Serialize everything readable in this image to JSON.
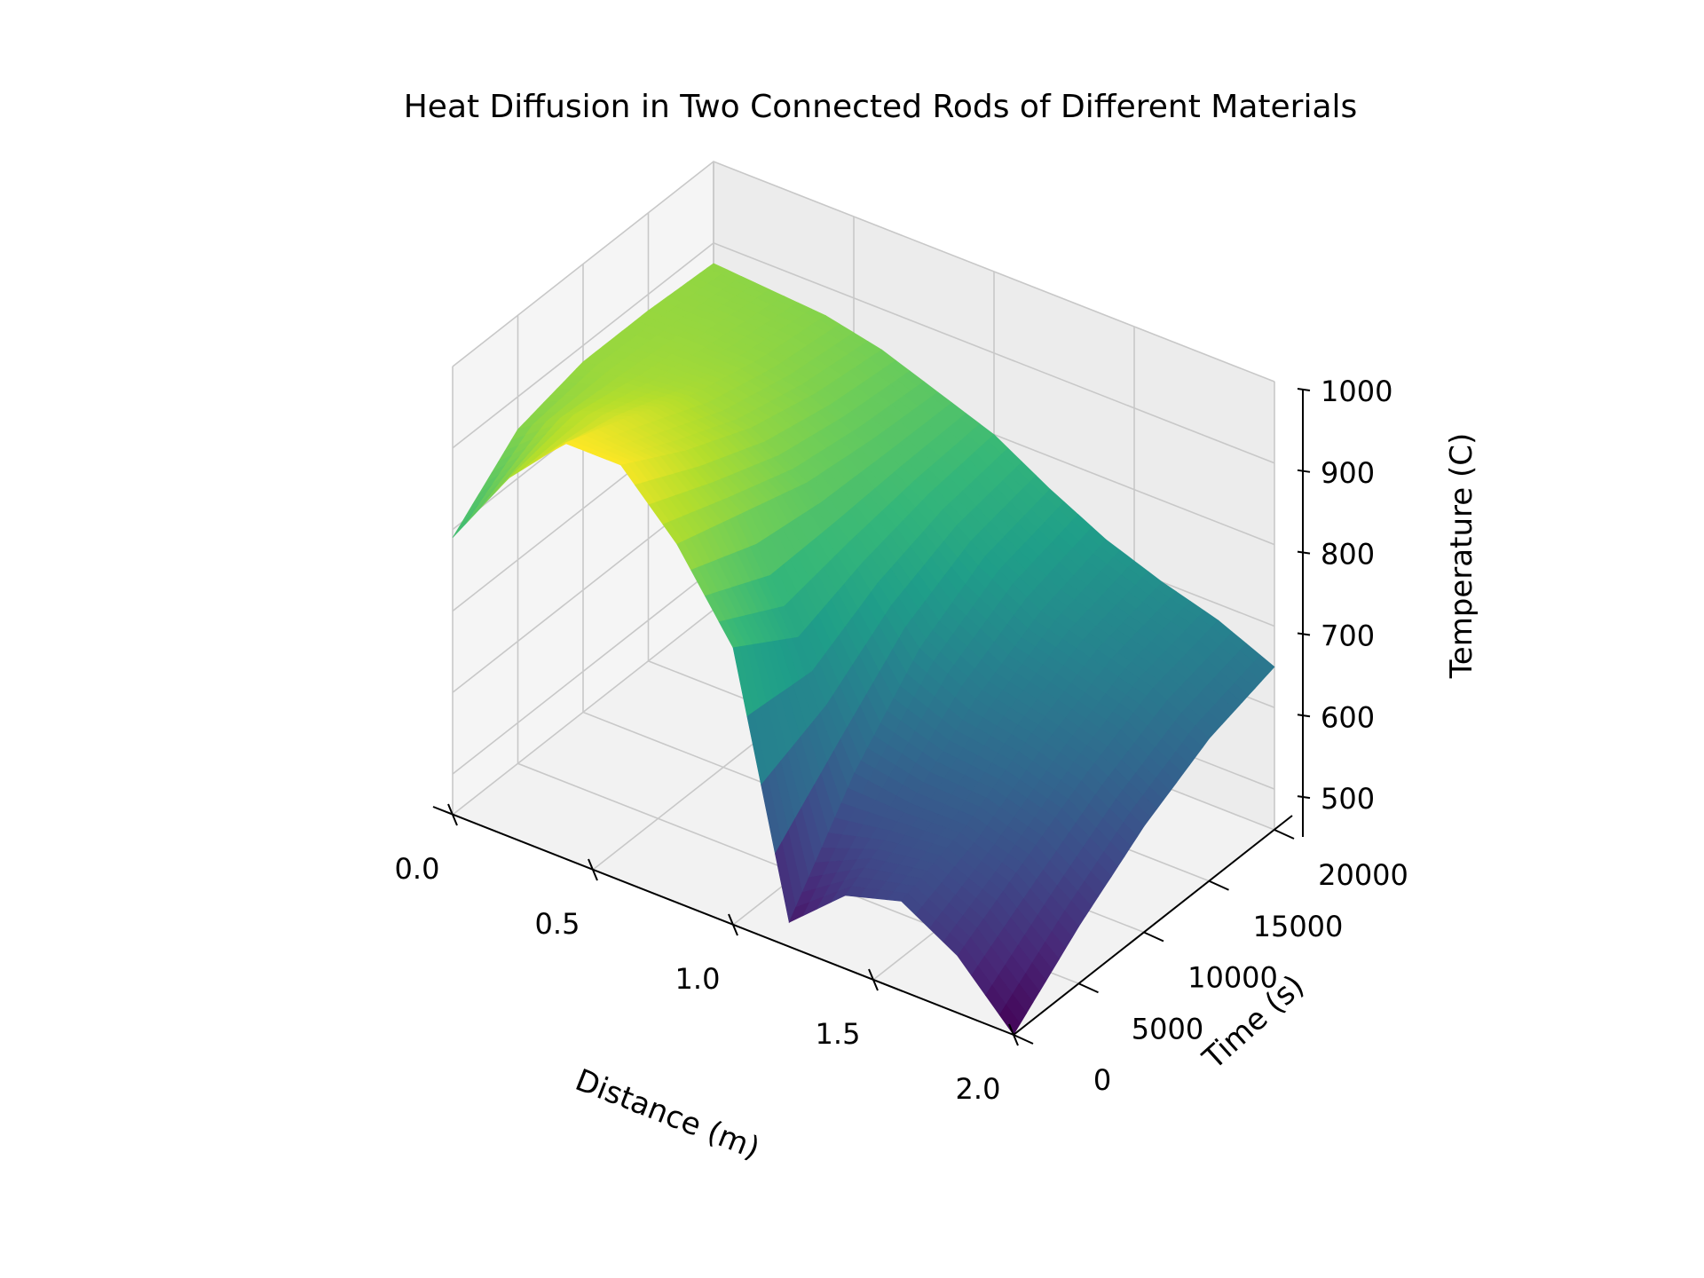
{
  "chart_data": {
    "type": "surface3d",
    "title": "Heat Diffusion in Two Connected Rods of Different Materials",
    "xlabel": "Distance (m)",
    "ylabel": "Time (s)",
    "zlabel": "Temperature (C)",
    "xlim": [
      0.0,
      2.0
    ],
    "ylim": [
      0,
      20000
    ],
    "zlim": [
      450,
      1000
    ],
    "x_ticks": [
      "0.0",
      "0.5",
      "1.0",
      "1.5",
      "2.0"
    ],
    "y_ticks": [
      "0",
      "5000",
      "10000",
      "15000",
      "20000"
    ],
    "z_ticks": [
      "500",
      "600",
      "700",
      "800",
      "900",
      "1000"
    ],
    "colormap": "viridis",
    "grid": true,
    "surface_rows": [
      {
        "time": 0,
        "x": [
          0.0,
          0.2,
          0.4,
          0.6,
          0.8,
          1.0,
          1.2,
          1.4,
          1.6,
          1.8,
          2.0
        ],
        "temperature": [
          790,
          890,
          960,
          960,
          890,
          790,
          480,
          540,
          560,
          520,
          450
        ]
      },
      {
        "time": 5000,
        "x": [
          0.0,
          0.2,
          0.4,
          0.6,
          0.8,
          1.0,
          1.2,
          1.4,
          1.6,
          1.8,
          2.0
        ],
        "temperature": [
          860,
          905,
          930,
          915,
          865,
          740,
          600,
          590,
          590,
          570,
          520
        ]
      },
      {
        "time": 10000,
        "x": [
          0.0,
          0.2,
          0.4,
          0.6,
          0.8,
          1.0,
          1.2,
          1.4,
          1.6,
          1.8,
          2.0
        ],
        "temperature": [
          880,
          890,
          895,
          880,
          840,
          770,
          690,
          655,
          640,
          620,
          580
        ]
      },
      {
        "time": 15000,
        "x": [
          0.0,
          0.2,
          0.4,
          0.6,
          0.8,
          1.0,
          1.2,
          1.4,
          1.6,
          1.8,
          2.0
        ],
        "temperature": [
          880,
          880,
          875,
          860,
          830,
          790,
          740,
          700,
          680,
          660,
          625
        ]
      },
      {
        "time": 20000,
        "x": [
          0.0,
          0.2,
          0.4,
          0.6,
          0.8,
          1.0,
          1.2,
          1.4,
          1.6,
          1.8,
          2.0
        ],
        "temperature": [
          875,
          870,
          865,
          850,
          825,
          800,
          760,
          725,
          700,
          680,
          650
        ]
      }
    ]
  }
}
